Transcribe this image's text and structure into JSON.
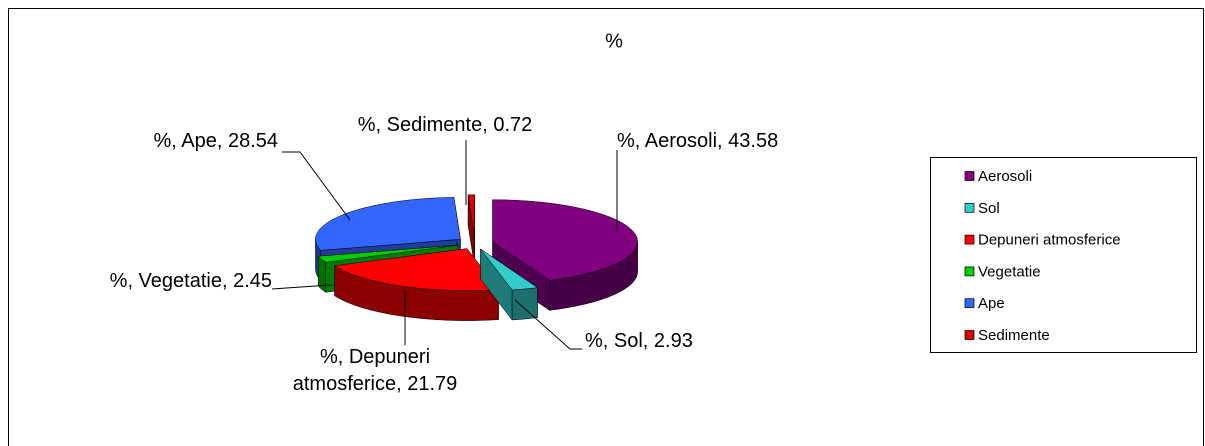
{
  "chart_data": {
    "type": "pie",
    "title": "%",
    "categories": [
      "Aerosoli",
      "Sol",
      "Depuneri atmosferice",
      "Vegetatie",
      "Ape",
      "Sedimente"
    ],
    "values": [
      43.58,
      2.93,
      21.79,
      2.45,
      28.54,
      0.72
    ],
    "value_labels": [
      "%, Aerosoli, 43.58",
      "%, Sol, 2.93",
      "%, Depuneri atmosferice, 21.79",
      "%, Vegetatie, 2.45",
      "%, Ape, 28.54",
      "%, Sedimente, 0.72"
    ],
    "colors": [
      "#800080",
      "#33cccc",
      "#ff0000",
      "#00cc00",
      "#3366ff",
      "#dd0000"
    ],
    "legend": "right"
  }
}
